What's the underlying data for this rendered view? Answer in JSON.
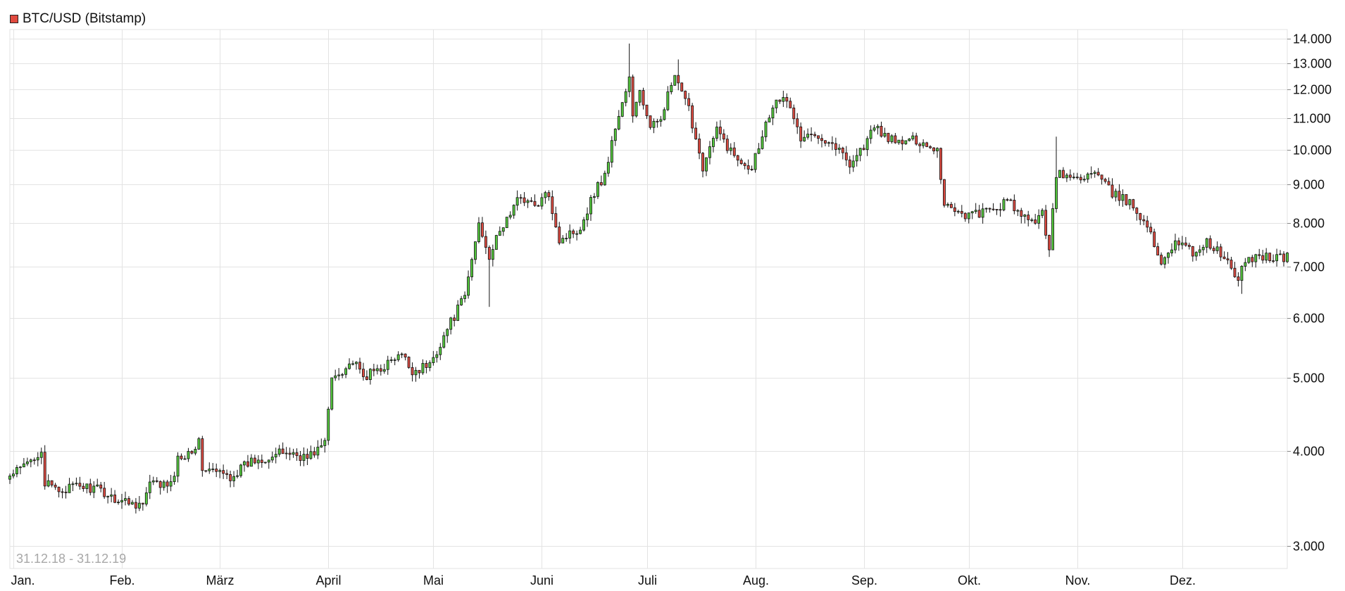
{
  "legend": {
    "label": "BTC/USD (Bitstamp)",
    "color": "#e04a3f"
  },
  "range_label": "31.12.18 - 31.12.19",
  "colors": {
    "up": "#55c93e",
    "down": "#dd4b42",
    "wick": "#111111",
    "grid": "#e3e3e3"
  },
  "chart_data": {
    "type": "candlestick",
    "series": [
      {
        "name": "BTC/USD (Bitstamp)"
      }
    ],
    "y_scale": "log",
    "ylim": [
      2800,
      14400
    ],
    "y_ticks": [
      3000,
      4000,
      5000,
      6000,
      7000,
      8000,
      9000,
      10000,
      11000,
      12000,
      13000,
      14000
    ],
    "y_tick_labels": [
      "3.000",
      "4.000",
      "5.000",
      "6.000",
      "7.000",
      "8.000",
      "9.000",
      "10.000",
      "11.000",
      "12.000",
      "13.000",
      "14.000"
    ],
    "x_ticks": [
      "2019-01-01",
      "2019-02-01",
      "2019-03-01",
      "2019-04-01",
      "2019-05-01",
      "2019-06-01",
      "2019-07-01",
      "2019-08-01",
      "2019-09-01",
      "2019-10-01",
      "2019-11-01",
      "2019-12-01"
    ],
    "x_tick_labels": [
      "Jan.",
      "Feb.",
      "März",
      "April",
      "Mai",
      "Juni",
      "Juli",
      "Aug.",
      "Sep.",
      "Okt.",
      "Nov.",
      "Dez."
    ],
    "xlim": [
      "2018-12-31",
      "2019-12-31"
    ],
    "close_anchors": [
      [
        "2018-12-31",
        3700
      ],
      [
        "2019-01-05",
        3850
      ],
      [
        "2019-01-09",
        4020
      ],
      [
        "2019-01-10",
        3620
      ],
      [
        "2019-01-14",
        3550
      ],
      [
        "2019-01-20",
        3600
      ],
      [
        "2019-01-25",
        3560
      ],
      [
        "2019-01-31",
        3450
      ],
      [
        "2019-02-07",
        3400
      ],
      [
        "2019-02-09",
        3620
      ],
      [
        "2019-02-15",
        3600
      ],
      [
        "2019-02-17",
        3900
      ],
      [
        "2019-02-23",
        4100
      ],
      [
        "2019-02-24",
        3800
      ],
      [
        "2019-03-04",
        3700
      ],
      [
        "2019-03-10",
        3880
      ],
      [
        "2019-03-20",
        3990
      ],
      [
        "2019-03-26",
        3920
      ],
      [
        "2019-03-31",
        4100
      ],
      [
        "2019-04-02",
        5000
      ],
      [
        "2019-04-08",
        5250
      ],
      [
        "2019-04-11",
        5000
      ],
      [
        "2019-04-22",
        5350
      ],
      [
        "2019-04-25",
        5100
      ],
      [
        "2019-04-30",
        5200
      ],
      [
        "2019-05-05",
        5800
      ],
      [
        "2019-05-10",
        6400
      ],
      [
        "2019-05-14",
        8000
      ],
      [
        "2019-05-17",
        7250
      ],
      [
        "2019-05-21",
        7950
      ],
      [
        "2019-05-26",
        8700
      ],
      [
        "2019-05-30",
        8400
      ],
      [
        "2019-06-03",
        8750
      ],
      [
        "2019-06-06",
        7600
      ],
      [
        "2019-06-12",
        7900
      ],
      [
        "2019-06-16",
        8800
      ],
      [
        "2019-06-19",
        9250
      ],
      [
        "2019-06-22",
        10700
      ],
      [
        "2019-06-26",
        12400
      ],
      [
        "2019-06-27",
        11000
      ],
      [
        "2019-06-29",
        12000
      ],
      [
        "2019-07-02",
        10600
      ],
      [
        "2019-07-05",
        11100
      ],
      [
        "2019-07-09",
        12500
      ],
      [
        "2019-07-10",
        12100
      ],
      [
        "2019-07-13",
        11300
      ],
      [
        "2019-07-17",
        9500
      ],
      [
        "2019-07-21",
        10600
      ],
      [
        "2019-07-26",
        9800
      ],
      [
        "2019-07-31",
        9500
      ],
      [
        "2019-08-03",
        10500
      ],
      [
        "2019-08-07",
        11800
      ],
      [
        "2019-08-11",
        11400
      ],
      [
        "2019-08-14",
        10300
      ],
      [
        "2019-08-19",
        10500
      ],
      [
        "2019-08-24",
        10100
      ],
      [
        "2019-08-28",
        9600
      ],
      [
        "2019-09-01",
        10100
      ],
      [
        "2019-09-04",
        10700
      ],
      [
        "2019-09-10",
        10200
      ],
      [
        "2019-09-16",
        10300
      ],
      [
        "2019-09-22",
        10000
      ],
      [
        "2019-09-24",
        8500
      ],
      [
        "2019-09-30",
        8200
      ],
      [
        "2019-10-08",
        8300
      ],
      [
        "2019-10-12",
        8550
      ],
      [
        "2019-10-18",
        8000
      ],
      [
        "2019-10-22",
        8200
      ],
      [
        "2019-10-24",
        7450
      ],
      [
        "2019-10-26",
        9300
      ],
      [
        "2019-10-31",
        9150
      ],
      [
        "2019-11-06",
        9300
      ],
      [
        "2019-11-11",
        8750
      ],
      [
        "2019-11-16",
        8500
      ],
      [
        "2019-11-20",
        8100
      ],
      [
        "2019-11-25",
        7100
      ],
      [
        "2019-11-29",
        7600
      ],
      [
        "2019-12-04",
        7300
      ],
      [
        "2019-12-08",
        7550
      ],
      [
        "2019-12-13",
        7200
      ],
      [
        "2019-12-17",
        6700
      ],
      [
        "2019-12-19",
        7150
      ],
      [
        "2019-12-24",
        7250
      ],
      [
        "2019-12-27",
        7200
      ],
      [
        "2019-12-31",
        7200
      ]
    ],
    "notable_wicks": [
      [
        "2019-06-26",
        13800
      ],
      [
        "2019-07-10",
        13150
      ],
      [
        "2019-05-17",
        6200
      ],
      [
        "2019-10-26",
        10400
      ],
      [
        "2019-12-18",
        6450
      ],
      [
        "2019-02-24",
        4190
      ]
    ]
  }
}
